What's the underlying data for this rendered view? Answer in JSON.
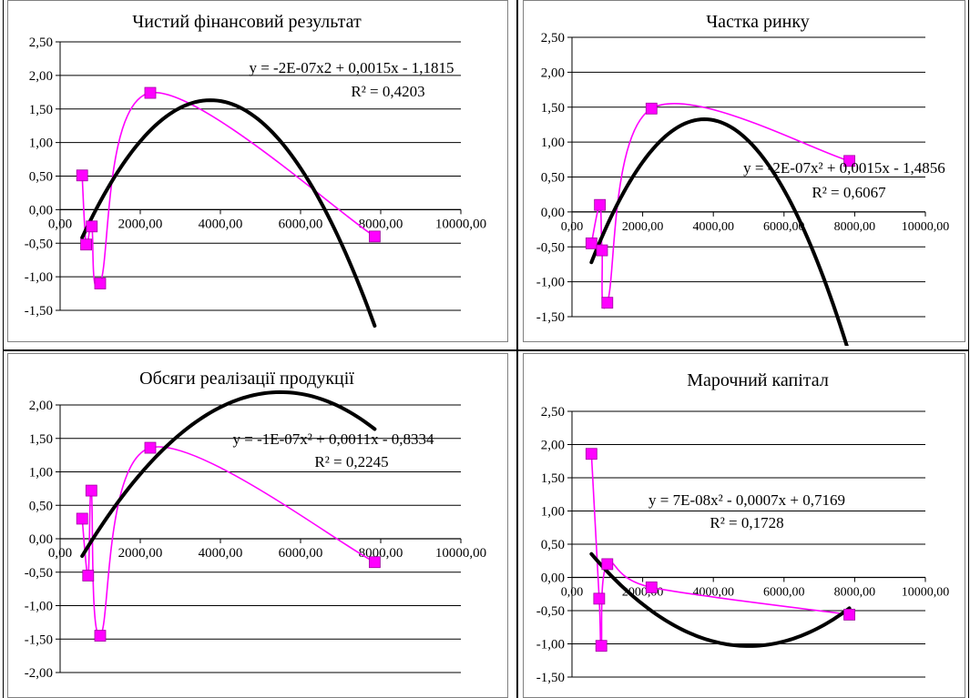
{
  "colors": {
    "series": "#ff00ff",
    "trend": "#000000",
    "grid": "#000000",
    "frame": "#808080"
  },
  "chart_data": [
    {
      "type": "scatter",
      "title": "Чистий фінансовий результат",
      "xlim": [
        0,
        10000
      ],
      "ylim": [
        -1.5,
        2.5
      ],
      "x_ticks": [
        "0,00",
        "2000,00",
        "4000,00",
        "6000,00",
        "8000,00",
        "10000,00"
      ],
      "y_ticks": [
        "2,50",
        "2,00",
        "1,50",
        "1,00",
        "0,50",
        "0,00",
        "-0,50",
        "-1,00",
        "-1,50"
      ],
      "series": [
        {
          "x": [
            550,
            650,
            790,
            1000,
            2250,
            7850
          ],
          "y": [
            0.51,
            -0.52,
            -0.25,
            -1.1,
            1.74,
            -0.4
          ]
        }
      ],
      "trendline": {
        "a": -2e-07,
        "b": 0.0015,
        "c": -1.1815,
        "equation": "y = -2E-07x2 + 0,0015x - 1,1815",
        "r2": "R² = 0,4203"
      }
    },
    {
      "type": "scatter",
      "title": "Частка ринку",
      "xlim": [
        0,
        10000
      ],
      "ylim": [
        -1.5,
        2.5
      ],
      "x_ticks": [
        "0,00",
        "2000,00",
        "4000,00",
        "6000,00",
        "8000,00",
        "10000,00"
      ],
      "y_ticks": [
        "2,50",
        "2,00",
        "1,50",
        "1,00",
        "0,50",
        "0,00",
        "-0,50",
        "-1,00",
        "-1,50"
      ],
      "series": [
        {
          "x": [
            550,
            790,
            850,
            1000,
            2250,
            7850
          ],
          "y": [
            -0.45,
            0.1,
            -0.55,
            -1.3,
            1.48,
            0.73
          ]
        }
      ],
      "trendline": {
        "a": -2e-07,
        "b": 0.0015,
        "c": -1.4856,
        "equation": "y = -2E-07x² + 0,0015x - 1,4856",
        "r2": "R² = 0,6067"
      }
    },
    {
      "type": "scatter",
      "title": "Обсяги реалізації продукції",
      "xlim": [
        0,
        10000
      ],
      "ylim": [
        -2,
        2
      ],
      "x_ticks": [
        "0,00",
        "2000,00",
        "4000,00",
        "6000,00",
        "8000,00",
        "10000,00"
      ],
      "y_ticks": [
        "2,00",
        "1,50",
        "1,00",
        "0,50",
        "0,00",
        "-0,50",
        "-1,00",
        "-1,50",
        "-2,00"
      ],
      "series": [
        {
          "x": [
            550,
            700,
            780,
            1000,
            2250,
            7850
          ],
          "y": [
            0.3,
            -0.55,
            0.72,
            -1.45,
            1.36,
            -0.35
          ]
        }
      ],
      "trendline": {
        "a": -1e-07,
        "b": 0.0011,
        "c": -0.8334,
        "equation": "y = -1E-07x² + 0,0011x - 0,8334",
        "r2": "R² = 0,2245"
      }
    },
    {
      "type": "scatter",
      "title": "Марочний капітал",
      "xlim": [
        0,
        10000
      ],
      "ylim": [
        -1.5,
        2.5
      ],
      "x_ticks": [
        "0,00",
        "2000,00",
        "4000,00",
        "6000,00",
        "8000,00",
        "10000,00"
      ],
      "y_ticks": [
        "2,50",
        "2,00",
        "1,50",
        "1,00",
        "0,50",
        "0,00",
        "-0,50",
        "-1,00",
        "-1,50"
      ],
      "series": [
        {
          "x": [
            550,
            770,
            830,
            1000,
            2250,
            7850
          ],
          "y": [
            1.86,
            -0.32,
            -1.03,
            0.2,
            -0.15,
            -0.56
          ]
        }
      ],
      "trendline": {
        "a": 7e-08,
        "b": -0.0007,
        "c": 0.7169,
        "equation": "y = 7E-08x² - 0,0007x + 0,7169",
        "r2": "R² = 0,1728"
      }
    }
  ]
}
